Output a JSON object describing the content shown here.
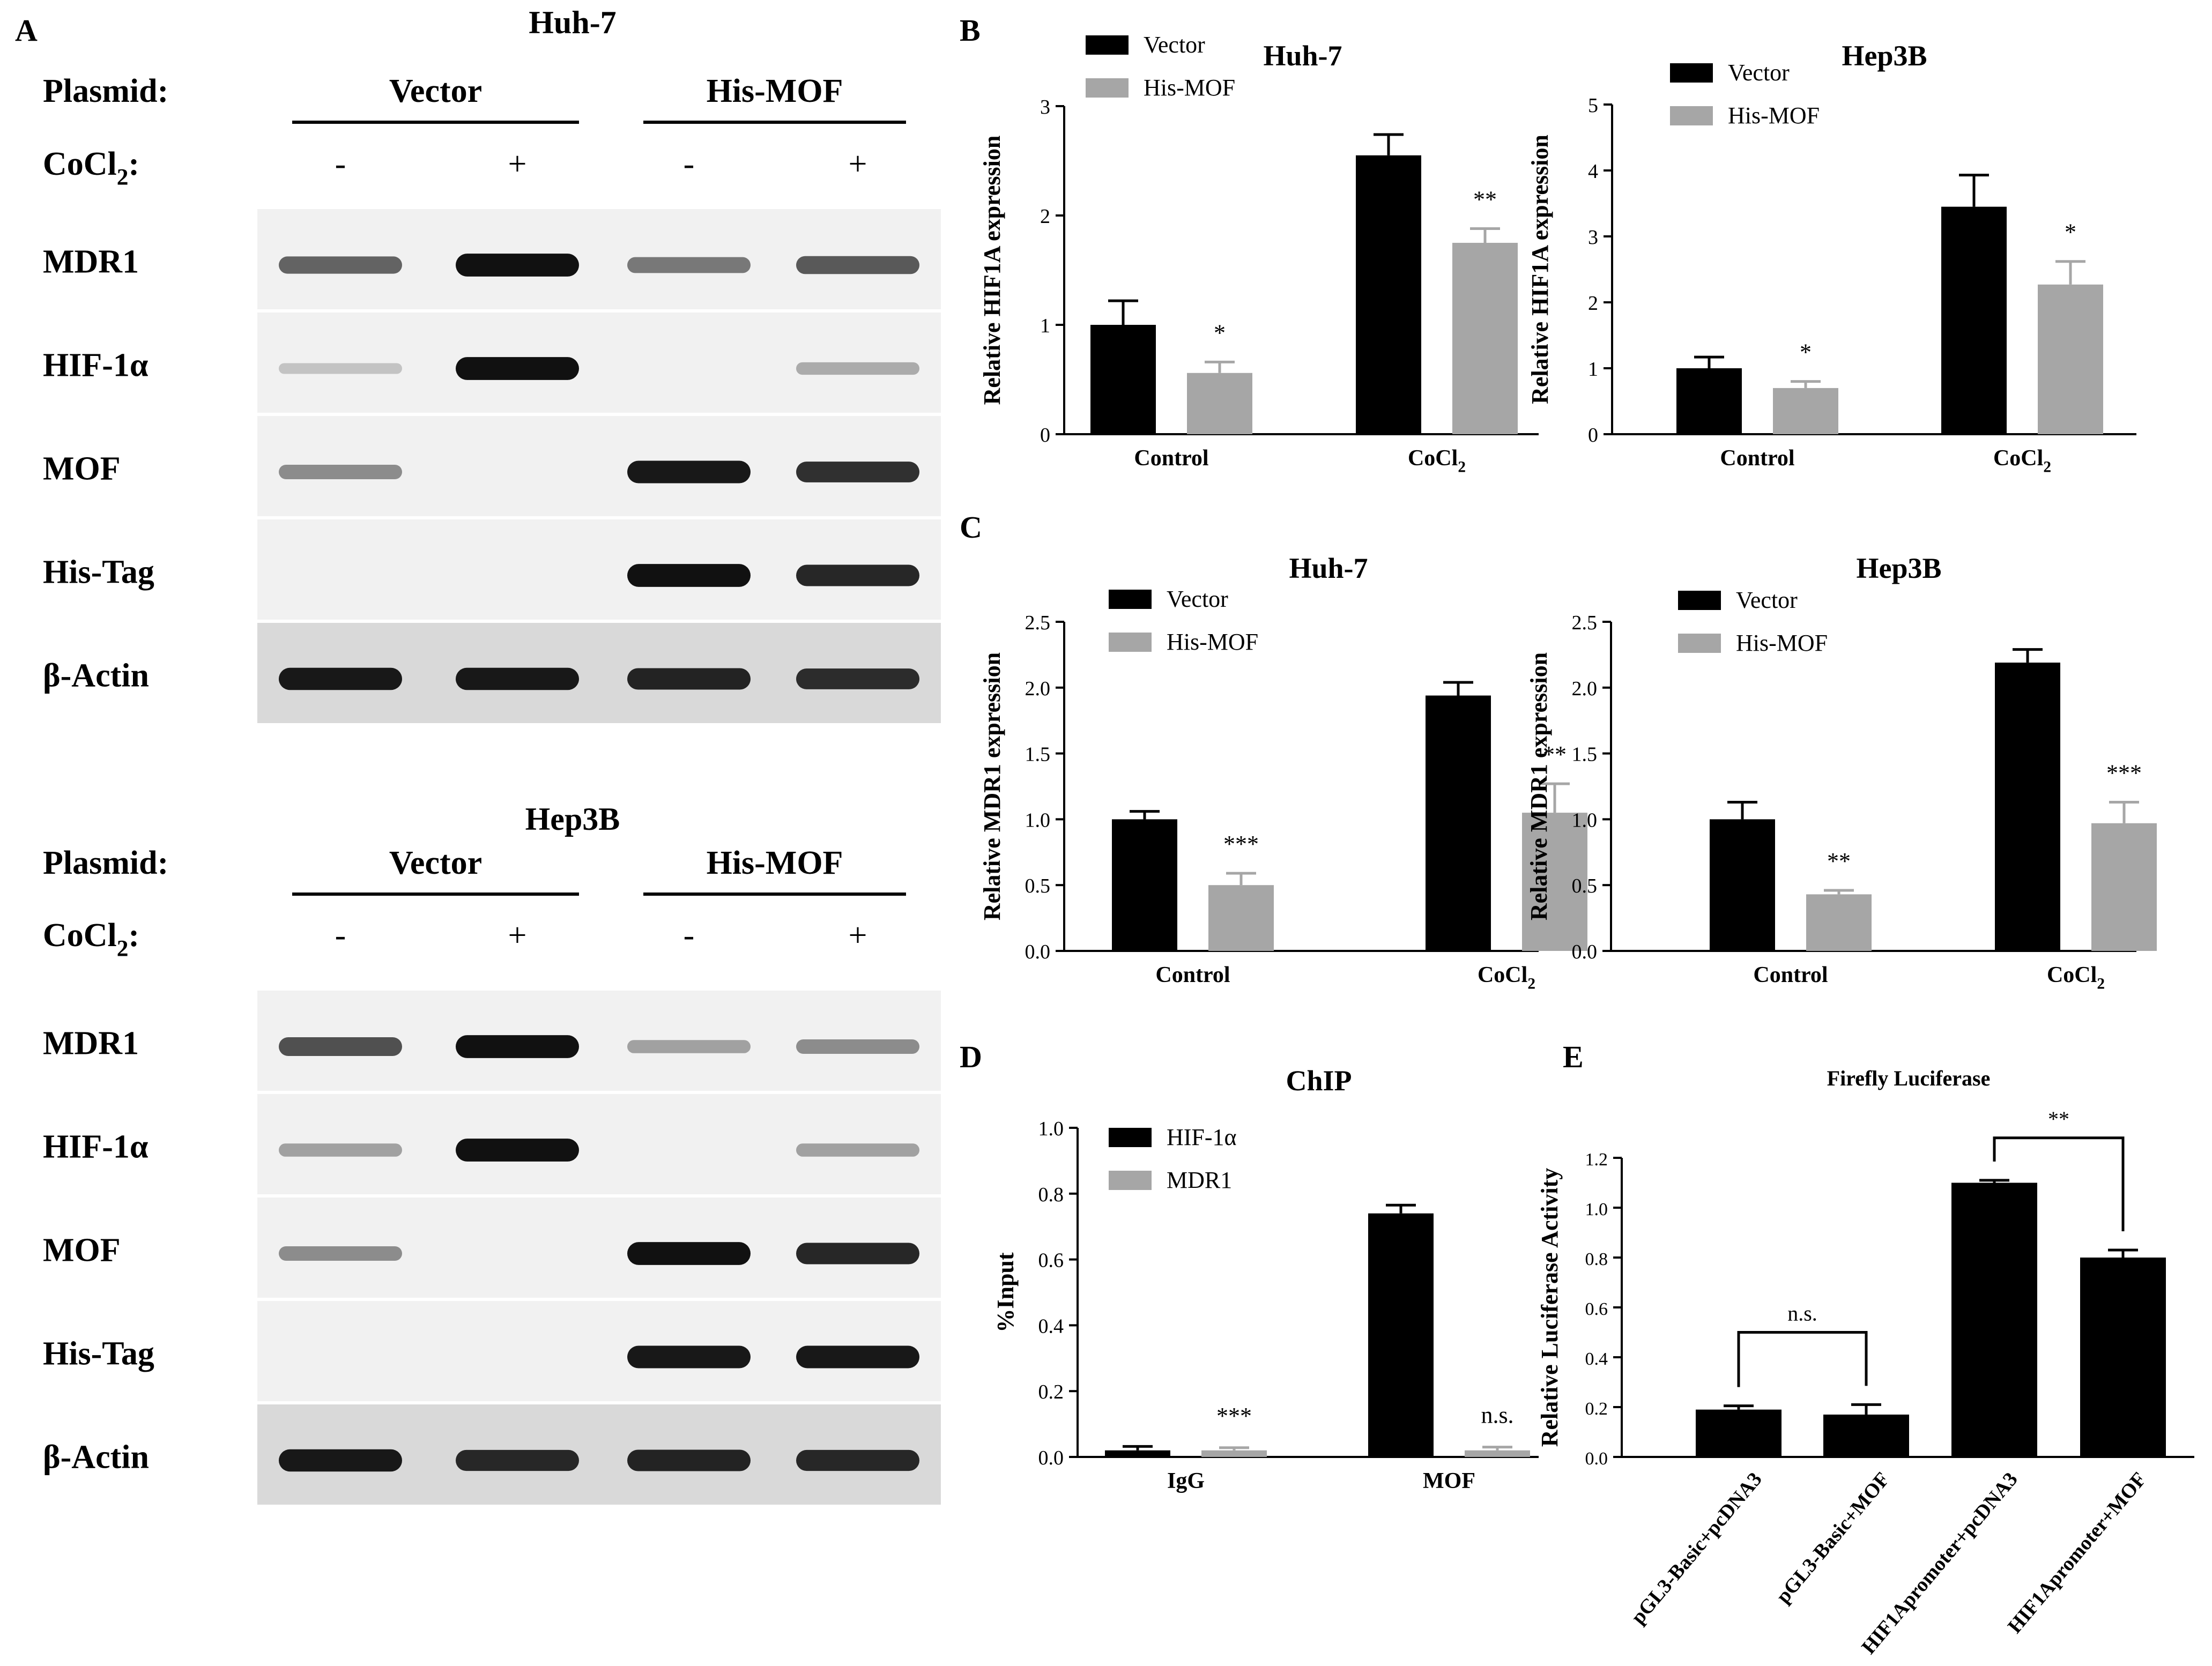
{
  "panelA": {
    "letter": "A",
    "plasmid_label": "Plasmid:",
    "cocl2_label": "CoCl",
    "cocl2_sub": "2",
    "cocl2_colon": ":",
    "group_labels": [
      "Vector",
      "His-MOF"
    ],
    "signs": [
      "-",
      "+",
      "-",
      "+"
    ],
    "row_labels": [
      "MDR1",
      "HIF-1α",
      "MOF",
      "His-Tag",
      "β-Actin"
    ],
    "blots": [
      {
        "title": "Huh-7",
        "band_intensity": [
          [
            0.55,
            0.95,
            0.45,
            0.6
          ],
          [
            0.08,
            0.95,
            0.0,
            0.2
          ],
          [
            0.35,
            0.0,
            0.92,
            0.8
          ],
          [
            0.0,
            0.0,
            0.95,
            0.85
          ],
          [
            0.9,
            0.9,
            0.85,
            0.8
          ]
        ]
      },
      {
        "title": "Hep3B",
        "band_intensity": [
          [
            0.65,
            0.95,
            0.25,
            0.35
          ],
          [
            0.25,
            0.95,
            0.0,
            0.25
          ],
          [
            0.35,
            0.0,
            0.95,
            0.85
          ],
          [
            0.0,
            0.0,
            0.92,
            0.92
          ],
          [
            0.9,
            0.82,
            0.85,
            0.82
          ]
        ]
      }
    ]
  },
  "panel_letters": [
    "B",
    "C",
    "D",
    "E"
  ],
  "chart_data": [
    {
      "type": "bar",
      "panel": "B",
      "title": "Huh-7",
      "ylabel": "Relative HIF1A expression",
      "xlabel": "",
      "categories": [
        "Control",
        "CoCl2"
      ],
      "ylim": [
        0,
        3
      ],
      "yticks": [
        "0",
        "1",
        "2",
        "3"
      ],
      "series": [
        {
          "name": "Vector",
          "color": "#000000",
          "values": [
            1.0,
            2.55
          ],
          "errors": [
            0.22,
            0.19
          ]
        },
        {
          "name": "His-MOF",
          "color": "#a6a6a6",
          "values": [
            0.56,
            1.75
          ],
          "errors": [
            0.1,
            0.13
          ]
        }
      ],
      "annotations": [
        "*",
        "**"
      ],
      "legend_position": "top-left"
    },
    {
      "type": "bar",
      "panel": "B",
      "title": "Hep3B",
      "ylabel": "Relative HIF1A expression",
      "xlabel": "",
      "categories": [
        "Control",
        "CoCl2"
      ],
      "ylim": [
        0,
        5
      ],
      "yticks": [
        "0",
        "1",
        "2",
        "3",
        "4",
        "5"
      ],
      "series": [
        {
          "name": "Vector",
          "color": "#000000",
          "values": [
            1.0,
            3.45
          ],
          "errors": [
            0.17,
            0.48
          ]
        },
        {
          "name": "His-MOF",
          "color": "#a6a6a6",
          "values": [
            0.7,
            2.27
          ],
          "errors": [
            0.1,
            0.35
          ]
        }
      ],
      "annotations": [
        "*",
        "*"
      ],
      "legend_position": "top-left"
    },
    {
      "type": "bar",
      "panel": "C",
      "title": "Huh-7",
      "ylabel": "Relative MDR1 expression",
      "xlabel": "",
      "categories": [
        "Control",
        "CoCl2"
      ],
      "ylim": [
        0,
        2.5
      ],
      "yticks": [
        "0.0",
        "0.5",
        "1.0",
        "1.5",
        "2.0",
        "2.5"
      ],
      "series": [
        {
          "name": "Vector",
          "color": "#000000",
          "values": [
            1.0,
            1.94
          ],
          "errors": [
            0.06,
            0.1
          ]
        },
        {
          "name": "His-MOF",
          "color": "#a6a6a6",
          "values": [
            0.5,
            1.05
          ],
          "errors": [
            0.09,
            0.22
          ]
        }
      ],
      "annotations": [
        "***",
        "**"
      ],
      "legend_position": "top-left"
    },
    {
      "type": "bar",
      "panel": "C",
      "title": "Hep3B",
      "ylabel": "Relative MDR1 expression",
      "xlabel": "",
      "categories": [
        "Control",
        "CoCl2"
      ],
      "ylim": [
        0,
        2.5
      ],
      "yticks": [
        "0.0",
        "0.5",
        "1.0",
        "1.5",
        "2.0",
        "2.5"
      ],
      "series": [
        {
          "name": "Vector",
          "color": "#000000",
          "values": [
            1.0,
            2.19
          ],
          "errors": [
            0.13,
            0.1
          ]
        },
        {
          "name": "His-MOF",
          "color": "#a6a6a6",
          "values": [
            0.43,
            0.97
          ],
          "errors": [
            0.03,
            0.16
          ]
        }
      ],
      "annotations": [
        "**",
        "***"
      ],
      "legend_position": "top-left"
    },
    {
      "type": "bar",
      "panel": "D",
      "title": "ChIP",
      "ylabel": "%Input",
      "xlabel": "",
      "categories": [
        "IgG",
        "MOF"
      ],
      "ylim": [
        0,
        1.0
      ],
      "yticks": [
        "0.0",
        "0.2",
        "0.4",
        "0.6",
        "0.8",
        "1.0"
      ],
      "series": [
        {
          "name": "HIF-1α",
          "color": "#000000",
          "values": [
            0.02,
            0.74
          ],
          "errors": [
            0.012,
            0.025
          ]
        },
        {
          "name": "MDR1",
          "color": "#a6a6a6",
          "values": [
            0.02,
            0.02
          ],
          "errors": [
            0.008,
            0.01
          ]
        }
      ],
      "annotations": [
        "",
        "***",
        "",
        "n.s."
      ],
      "legend_position": "top-left"
    },
    {
      "type": "bar",
      "panel": "E",
      "title": "Firefly Luciferase",
      "ylabel": "Relative Luciferase Activity",
      "xlabel": "",
      "categories": [
        "pGL3-Basic+pcDNA3",
        "pGL3-Basic+MOF",
        "HIF1Apromoter+pcDNA3",
        "HIF1Apromoter+MOF"
      ],
      "ylim": [
        0,
        1.2
      ],
      "yticks": [
        "0.0",
        "0.2",
        "0.4",
        "0.6",
        "0.8",
        "1.0",
        "1.2"
      ],
      "series": [
        {
          "name": "",
          "color": "#000000",
          "values": [
            0.19,
            0.17,
            1.1,
            0.8
          ],
          "errors": [
            0.015,
            0.04,
            0.01,
            0.03
          ]
        }
      ],
      "comparisons": [
        "n.s.",
        "**"
      ]
    }
  ]
}
